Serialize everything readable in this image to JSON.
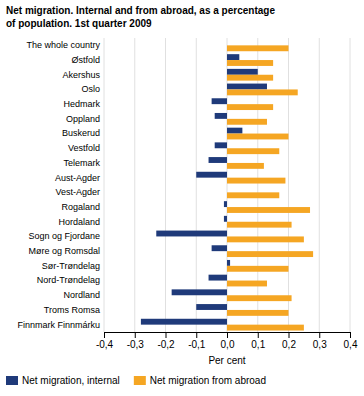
{
  "chart_data": {
    "type": "bar",
    "orientation": "horizontal",
    "title": "Net migration. Internal and from abroad, as a percentage",
    "subtitle": "of population. 1st quarter 2009",
    "categories": [
      "The whole country",
      "Østfold",
      "Akershus",
      "Oslo",
      "Hedmark",
      "Oppland",
      "Buskerud",
      "Vestfold",
      "Telemark",
      "Aust-Agder",
      "Vest-Agder",
      "Rogaland",
      "Hordaland",
      "Sogn og Fjordane",
      "Møre og Romsdal",
      "Sør-Trøndelag",
      "Nord-Trøndelag",
      "Nordland",
      "Troms Romsa",
      "Finnmark Finnmárku"
    ],
    "series": [
      {
        "name": "Net migration, internal",
        "color": "#1f3a7a",
        "values": [
          0.0,
          0.04,
          0.1,
          0.13,
          -0.05,
          -0.04,
          0.05,
          -0.04,
          -0.06,
          -0.1,
          0.0,
          -0.01,
          -0.01,
          -0.23,
          -0.05,
          0.01,
          -0.06,
          -0.18,
          -0.1,
          -0.28
        ]
      },
      {
        "name": "Net migration from abroad",
        "color": "#f5a623",
        "values": [
          0.2,
          0.15,
          0.15,
          0.23,
          0.15,
          0.13,
          0.2,
          0.17,
          0.12,
          0.19,
          0.17,
          0.27,
          0.21,
          0.25,
          0.28,
          0.2,
          0.13,
          0.21,
          0.2,
          0.25
        ]
      }
    ],
    "xlabel": "Per cent",
    "xlim": [
      -0.4,
      0.4
    ],
    "xticks": [
      {
        "value": -0.4,
        "label": "-0,4"
      },
      {
        "value": -0.3,
        "label": "-0,3"
      },
      {
        "value": -0.2,
        "label": "-0,2"
      },
      {
        "value": -0.1,
        "label": "-0,1"
      },
      {
        "value": 0.0,
        "label": "0,0"
      },
      {
        "value": 0.1,
        "label": "0,1"
      },
      {
        "value": 0.2,
        "label": "0,2"
      },
      {
        "value": 0.3,
        "label": "0,3"
      },
      {
        "value": 0.4,
        "label": "0,4"
      }
    ],
    "grid": true,
    "legend": "bottom"
  }
}
